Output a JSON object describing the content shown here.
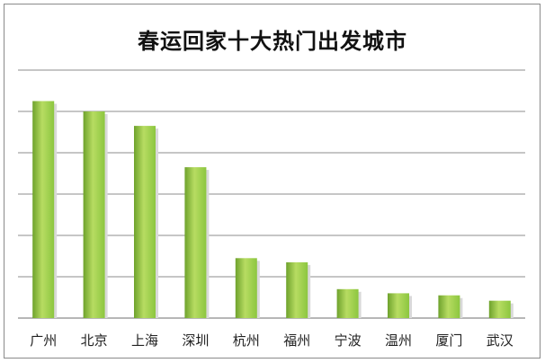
{
  "chart_data": {
    "type": "bar",
    "title": "春运回家十大热门出发城市",
    "categories": [
      "广州",
      "北京",
      "上海",
      "深圳",
      "杭州",
      "福州",
      "宁波",
      "温州",
      "厦门",
      "武汉"
    ],
    "values": [
      5.25,
      5.0,
      4.65,
      3.65,
      1.45,
      1.35,
      0.7,
      0.6,
      0.55,
      0.42
    ],
    "ylim": [
      0,
      6
    ],
    "grid": true,
    "y_tick_labels_shown": false,
    "bar_color": "#8cc63f",
    "bar_color_light": "#b7dc62",
    "bar_color_dark": "#6ea22c",
    "grid_color": "#8c8c8c"
  }
}
